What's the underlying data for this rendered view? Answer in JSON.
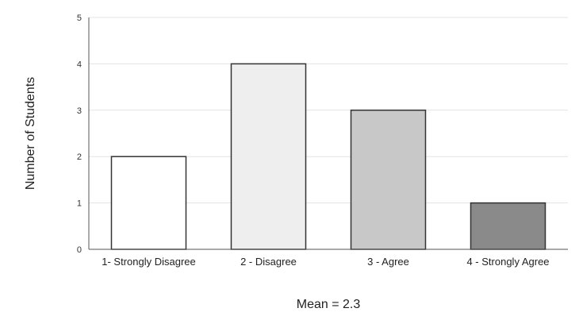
{
  "chart_data": {
    "type": "bar",
    "categories": [
      "1- Strongly Disagree",
      "2 - Disagree",
      "3 - Agree",
      "4 - Strongly Agree"
    ],
    "values": [
      2,
      4,
      3,
      1
    ],
    "ylabel": "Number of Students",
    "xlabel": "Mean = 2.3",
    "ylim": [
      0,
      5
    ],
    "yticks": [
      0,
      1,
      2,
      3,
      4,
      5
    ],
    "grid": true,
    "legend": "none",
    "bar_colors": [
      "#ffffff",
      "#eeeeee",
      "#c8c8c8",
      "#8a8a8a"
    ]
  }
}
